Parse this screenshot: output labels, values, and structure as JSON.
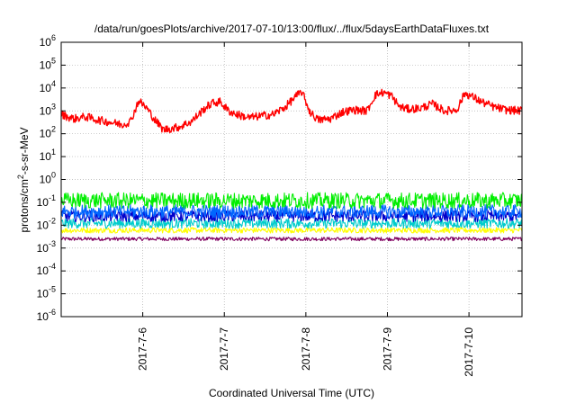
{
  "chart_data": {
    "type": "line",
    "title": "/data/run/goesPlots/archive/2017-07-10/13:00/flux/../flux/5daysEarthDataFluxes.txt",
    "xlabel": "Coordinated Universal Time (UTC)",
    "ylabel": {
      "prefix": "protons/cm",
      "sup": "2",
      "suffix": "-s-sr-MeV"
    },
    "y_scale": "log",
    "ylim_exp": [
      -6,
      6
    ],
    "y_tick_labels": [
      {
        "exp": "6"
      },
      {
        "exp": "5"
      },
      {
        "exp": "4"
      },
      {
        "exp": "3"
      },
      {
        "exp": "2"
      },
      {
        "exp": "1"
      },
      {
        "exp": "0"
      },
      {
        "exp": "-1"
      },
      {
        "exp": "-2"
      },
      {
        "exp": "-3"
      },
      {
        "exp": "-4"
      },
      {
        "exp": "-5"
      },
      {
        "exp": "-6"
      }
    ],
    "y_tick_base": "10",
    "xlim_days": [
      0,
      5.65
    ],
    "x_ticks": [
      {
        "day": 1,
        "label": "2017-7-6"
      },
      {
        "day": 2,
        "label": "2017-7-7"
      },
      {
        "day": 3,
        "label": "2017-7-8"
      },
      {
        "day": 4,
        "label": "2017-7-9"
      },
      {
        "day": 5,
        "label": "2017-7-10"
      }
    ],
    "grid": true,
    "series": [
      {
        "color": "#ff0000",
        "x": [
          0,
          0.15,
          0.3,
          0.45,
          0.6,
          0.75,
          0.85,
          0.95,
          1.05,
          1.15,
          1.25,
          1.35,
          1.45,
          1.6,
          1.75,
          1.85,
          1.95,
          2.05,
          2.15,
          2.3,
          2.45,
          2.6,
          2.75,
          2.85,
          2.95,
          3.05,
          3.15,
          3.3,
          3.45,
          3.6,
          3.75,
          3.85,
          3.95,
          4.05,
          4.15,
          4.25,
          4.4,
          4.55,
          4.7,
          4.85,
          4.95,
          5.05,
          5.15,
          5.3,
          5.45,
          5.65
        ],
        "y": [
          700,
          450,
          550,
          400,
          320,
          250,
          350,
          2800,
          1300,
          400,
          150,
          170,
          200,
          350,
          1200,
          2200,
          2500,
          1000,
          700,
          500,
          600,
          700,
          1500,
          3500,
          7000,
          900,
          400,
          450,
          900,
          1100,
          1000,
          5000,
          6500,
          4500,
          1500,
          1200,
          1300,
          2000,
          1000,
          1100,
          6000,
          4000,
          2500,
          1500,
          1100,
          1000
        ]
      },
      {
        "color": "#00ee00",
        "x": [
          0,
          5.65
        ],
        "y": [
          0.12,
          0.12
        ]
      },
      {
        "color": "#0066ff",
        "x": [
          0,
          5.65
        ],
        "y": [
          0.04,
          0.04
        ]
      },
      {
        "color": "#0000cc",
        "x": [
          0,
          5.65
        ],
        "y": [
          0.025,
          0.025
        ]
      },
      {
        "color": "#00cccc",
        "x": [
          0,
          5.65
        ],
        "y": [
          0.012,
          0.012
        ]
      },
      {
        "color": "#ffff00",
        "x": [
          0,
          5.65
        ],
        "y": [
          0.006,
          0.006
        ]
      },
      {
        "color": "#800060",
        "x": [
          0,
          5.65
        ],
        "y": [
          0.0025,
          0.0025
        ]
      }
    ]
  }
}
